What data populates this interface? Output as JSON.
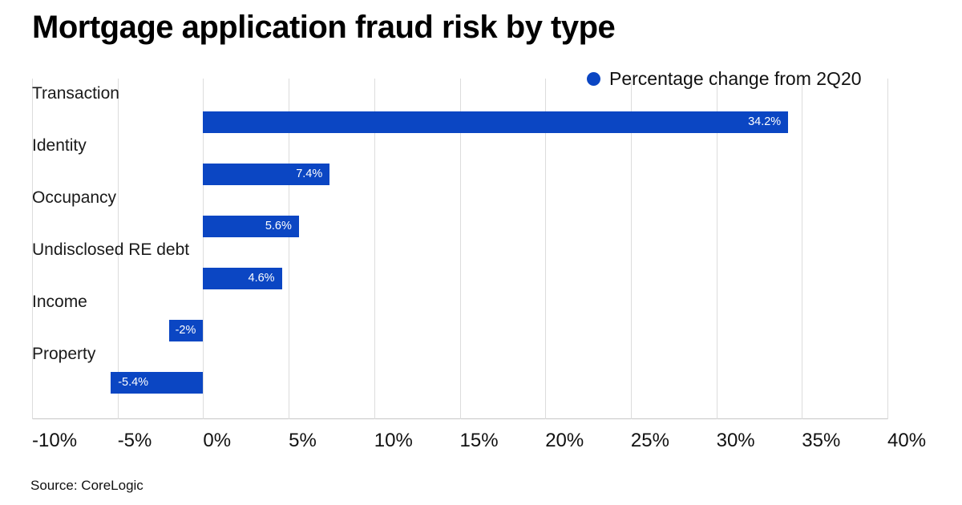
{
  "title": "Mortgage application fraud risk by type",
  "legend": {
    "label": "Percentage change from 2Q20",
    "marker": "circle-icon",
    "marker_color": "#0b46c3"
  },
  "source": "Source: CoreLogic",
  "colors": {
    "bar": "#0b46c3",
    "gridline": "#dcdcdc",
    "axis_line": "#c6c6c6",
    "title_text": "#000000",
    "label_text": "#1a1a1a",
    "value_label_text": "#ffffff"
  },
  "chart_data": {
    "type": "bar",
    "orientation": "horizontal",
    "title": "Mortgage application fraud risk by type",
    "categories": [
      "Transaction",
      "Identity",
      "Occupancy",
      "Undisclosed RE debt",
      "Income",
      "Property"
    ],
    "values": [
      34.2,
      7.4,
      5.6,
      4.6,
      -2,
      -5.4
    ],
    "value_labels": [
      "34.2%",
      "7.4%",
      "5.6%",
      "4.6%",
      "-2%",
      "-5.4%"
    ],
    "value_label_align": [
      "right",
      "right",
      "right",
      "right",
      "right",
      "left"
    ],
    "series_name": "Percentage change from 2Q20",
    "xlabel": "",
    "ylabel": "",
    "xlim": [
      -10,
      40
    ],
    "x_ticks": [
      -10,
      -5,
      0,
      5,
      10,
      15,
      20,
      25,
      30,
      35,
      40
    ],
    "x_tick_labels": [
      "-10%",
      "-5%",
      "0%",
      "5%",
      "10%",
      "15%",
      "20%",
      "25%",
      "30%",
      "35%",
      "40%"
    ],
    "grid": true,
    "legend_position": "top-right"
  }
}
